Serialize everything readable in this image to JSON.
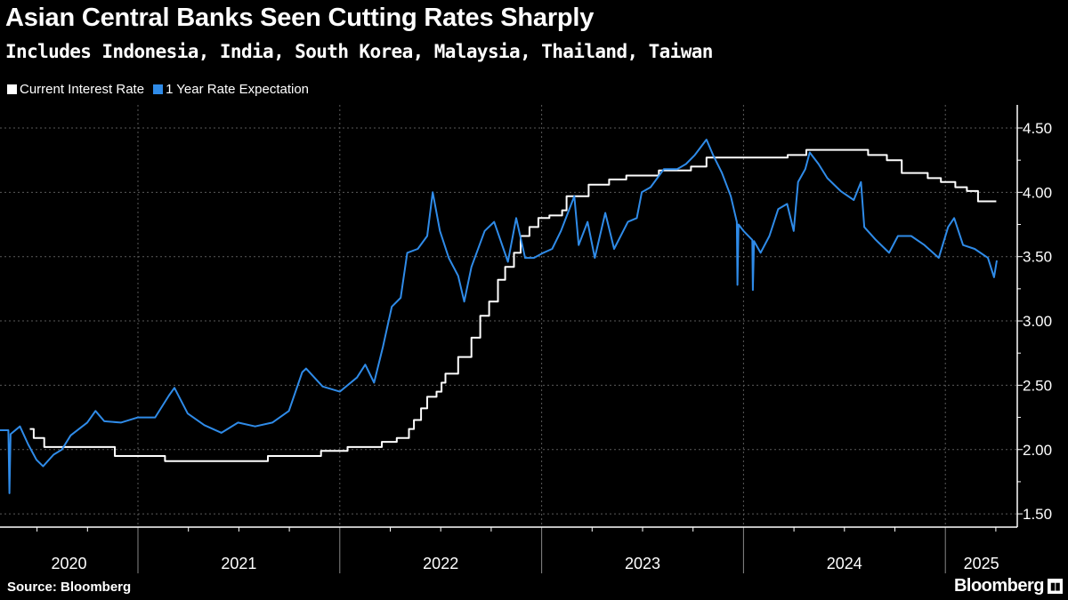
{
  "title": "Asian Central Banks Seen Cutting Rates Sharply",
  "subtitle": "Includes Indonesia, India, South Korea, Malaysia, Thailand, Taiwan",
  "source": "Source: Bloomberg",
  "logo": "Bloomberg",
  "colors": {
    "background": "#000000",
    "current": "#ffffff",
    "expectation": "#2f8be8",
    "grid": "#555555"
  },
  "chart_data": {
    "type": "line",
    "title": "Asian Central Banks Seen Cutting Rates Sharply",
    "subtitle": "Includes Indonesia, India, South Korea, Malaysia, Thailand, Taiwan",
    "xlabel": "",
    "ylabel": "",
    "y_axis_side": "right",
    "ylim": [
      1.35,
      4.6
    ],
    "y_ticks": [
      "4.50",
      "4.00",
      "3.50",
      "3.00",
      "2.50",
      "2.00",
      "1.50"
    ],
    "x_ticks": [
      "2020",
      "2021",
      "2022",
      "2023",
      "2024",
      "2025"
    ],
    "xlim": [
      "2020-04-25",
      "2025-04-15"
    ],
    "grid": true,
    "legend_position": "top-left",
    "series": [
      {
        "name": "Current Interest Rate",
        "color": "#ffffff",
        "step": true,
        "points": [
          [
            "2020-06-19",
            2.16
          ],
          [
            "2020-06-26",
            2.09
          ],
          [
            "2020-07-15",
            2.02
          ],
          [
            "2020-11-20",
            1.95
          ],
          [
            "2021-02-19",
            1.91
          ],
          [
            "2021-08-24",
            1.95
          ],
          [
            "2021-11-28",
            1.99
          ],
          [
            "2022-01-15",
            2.02
          ],
          [
            "2022-03-18",
            2.06
          ],
          [
            "2022-04-14",
            2.09
          ],
          [
            "2022-05-06",
            2.16
          ],
          [
            "2022-05-15",
            2.23
          ],
          [
            "2022-05-28",
            2.32
          ],
          [
            "2022-06-08",
            2.41
          ],
          [
            "2022-06-25",
            2.45
          ],
          [
            "2022-07-04",
            2.52
          ],
          [
            "2022-07-11",
            2.59
          ],
          [
            "2022-08-03",
            2.72
          ],
          [
            "2022-08-27",
            2.87
          ],
          [
            "2022-09-12",
            3.04
          ],
          [
            "2022-09-28",
            3.15
          ],
          [
            "2022-10-14",
            3.32
          ],
          [
            "2022-10-27",
            3.42
          ],
          [
            "2022-11-12",
            3.53
          ],
          [
            "2022-11-24",
            3.66
          ],
          [
            "2022-12-10",
            3.73
          ],
          [
            "2022-12-26",
            3.8
          ],
          [
            "2023-01-15",
            3.82
          ],
          [
            "2023-02-07",
            3.86
          ],
          [
            "2023-02-15",
            3.97
          ],
          [
            "2023-03-27",
            4.06
          ],
          [
            "2023-05-03",
            4.1
          ],
          [
            "2023-06-03",
            4.13
          ],
          [
            "2023-08-01",
            4.17
          ],
          [
            "2023-09-28",
            4.2
          ],
          [
            "2023-10-26",
            4.27
          ],
          [
            "2024-03-21",
            4.29
          ],
          [
            "2024-04-24",
            4.33
          ],
          [
            "2024-08-14",
            4.29
          ],
          [
            "2024-09-17",
            4.25
          ],
          [
            "2024-10-14",
            4.15
          ],
          [
            "2024-11-30",
            4.11
          ],
          [
            "2024-12-24",
            4.08
          ],
          [
            "2025-01-19",
            4.04
          ],
          [
            "2025-02-09",
            4.01
          ],
          [
            "2025-03-01",
            3.93
          ],
          [
            "2025-04-03",
            3.93
          ]
        ]
      },
      {
        "name": "1 Year Rate Expectation",
        "color": "#2f8be8",
        "step": false,
        "points": [
          [
            "2020-04-25",
            2.15
          ],
          [
            "2020-05-01",
            2.15
          ],
          [
            "2020-05-11",
            2.15
          ],
          [
            "2020-05-13",
            1.66
          ],
          [
            "2020-05-15",
            2.12
          ],
          [
            "2020-06-01",
            2.18
          ],
          [
            "2020-06-16",
            2.04
          ],
          [
            "2020-07-01",
            1.92
          ],
          [
            "2020-07-13",
            1.87
          ],
          [
            "2020-08-01",
            1.96
          ],
          [
            "2020-08-16",
            2.0
          ],
          [
            "2020-09-01",
            2.11
          ],
          [
            "2020-10-01",
            2.21
          ],
          [
            "2020-10-16",
            2.3
          ],
          [
            "2020-11-01",
            2.22
          ],
          [
            "2020-12-01",
            2.21
          ],
          [
            "2021-01-01",
            2.25
          ],
          [
            "2021-02-01",
            2.25
          ],
          [
            "2021-02-26",
            2.42
          ],
          [
            "2021-03-08",
            2.48
          ],
          [
            "2021-04-01",
            2.28
          ],
          [
            "2021-05-01",
            2.19
          ],
          [
            "2021-06-01",
            2.13
          ],
          [
            "2021-07-01",
            2.21
          ],
          [
            "2021-08-01",
            2.18
          ],
          [
            "2021-09-01",
            2.21
          ],
          [
            "2021-10-01",
            2.3
          ],
          [
            "2021-10-25",
            2.6
          ],
          [
            "2021-11-01",
            2.63
          ],
          [
            "2021-12-01",
            2.49
          ],
          [
            "2022-01-01",
            2.45
          ],
          [
            "2022-02-01",
            2.56
          ],
          [
            "2022-02-16",
            2.66
          ],
          [
            "2022-03-04",
            2.52
          ],
          [
            "2022-03-20",
            2.8
          ],
          [
            "2022-04-05",
            3.11
          ],
          [
            "2022-04-21",
            3.18
          ],
          [
            "2022-05-03",
            3.53
          ],
          [
            "2022-05-22",
            3.56
          ],
          [
            "2022-06-08",
            3.66
          ],
          [
            "2022-06-18",
            4.0
          ],
          [
            "2022-07-01",
            3.7
          ],
          [
            "2022-07-17",
            3.49
          ],
          [
            "2022-08-03",
            3.35
          ],
          [
            "2022-08-14",
            3.15
          ],
          [
            "2022-08-27",
            3.42
          ],
          [
            "2022-09-20",
            3.7
          ],
          [
            "2022-10-07",
            3.77
          ],
          [
            "2022-11-01",
            3.46
          ],
          [
            "2022-11-16",
            3.8
          ],
          [
            "2022-12-02",
            3.49
          ],
          [
            "2022-12-18",
            3.49
          ],
          [
            "2023-01-04",
            3.53
          ],
          [
            "2023-01-20",
            3.56
          ],
          [
            "2023-02-05",
            3.7
          ],
          [
            "2023-03-01",
            3.97
          ],
          [
            "2023-03-09",
            3.59
          ],
          [
            "2023-03-25",
            3.77
          ],
          [
            "2023-04-07",
            3.49
          ],
          [
            "2023-04-26",
            3.84
          ],
          [
            "2023-05-12",
            3.56
          ],
          [
            "2023-06-06",
            3.77
          ],
          [
            "2023-06-22",
            3.8
          ],
          [
            "2023-07-01",
            4.0
          ],
          [
            "2023-07-17",
            4.04
          ],
          [
            "2023-08-10",
            4.18
          ],
          [
            "2023-09-03",
            4.18
          ],
          [
            "2023-09-19",
            4.22
          ],
          [
            "2023-10-05",
            4.29
          ],
          [
            "2023-10-26",
            4.41
          ],
          [
            "2023-11-07",
            4.29
          ],
          [
            "2023-11-23",
            4.15
          ],
          [
            "2023-12-09",
            3.97
          ],
          [
            "2023-12-20",
            3.77
          ],
          [
            "2023-12-21",
            3.28
          ],
          [
            "2023-12-23",
            3.75
          ],
          [
            "2024-01-01",
            3.7
          ],
          [
            "2024-01-17",
            3.63
          ],
          [
            "2024-01-18",
            3.24
          ],
          [
            "2024-01-20",
            3.62
          ],
          [
            "2024-02-01",
            3.53
          ],
          [
            "2024-02-17",
            3.66
          ],
          [
            "2024-03-04",
            3.87
          ],
          [
            "2024-03-20",
            3.91
          ],
          [
            "2024-04-01",
            3.7
          ],
          [
            "2024-04-09",
            4.08
          ],
          [
            "2024-04-22",
            4.18
          ],
          [
            "2024-04-30",
            4.31
          ],
          [
            "2024-05-16",
            4.22
          ],
          [
            "2024-06-01",
            4.11
          ],
          [
            "2024-06-25",
            4.01
          ],
          [
            "2024-07-19",
            3.94
          ],
          [
            "2024-08-01",
            4.08
          ],
          [
            "2024-08-07",
            3.73
          ],
          [
            "2024-08-28",
            3.63
          ],
          [
            "2024-09-21",
            3.53
          ],
          [
            "2024-10-07",
            3.66
          ],
          [
            "2024-10-31",
            3.66
          ],
          [
            "2024-11-24",
            3.59
          ],
          [
            "2024-12-20",
            3.49
          ],
          [
            "2025-01-06",
            3.73
          ],
          [
            "2025-01-17",
            3.8
          ],
          [
            "2025-02-02",
            3.59
          ],
          [
            "2025-02-23",
            3.56
          ],
          [
            "2025-03-19",
            3.49
          ],
          [
            "2025-03-30",
            3.34
          ],
          [
            "2025-04-04",
            3.47
          ]
        ]
      }
    ]
  }
}
